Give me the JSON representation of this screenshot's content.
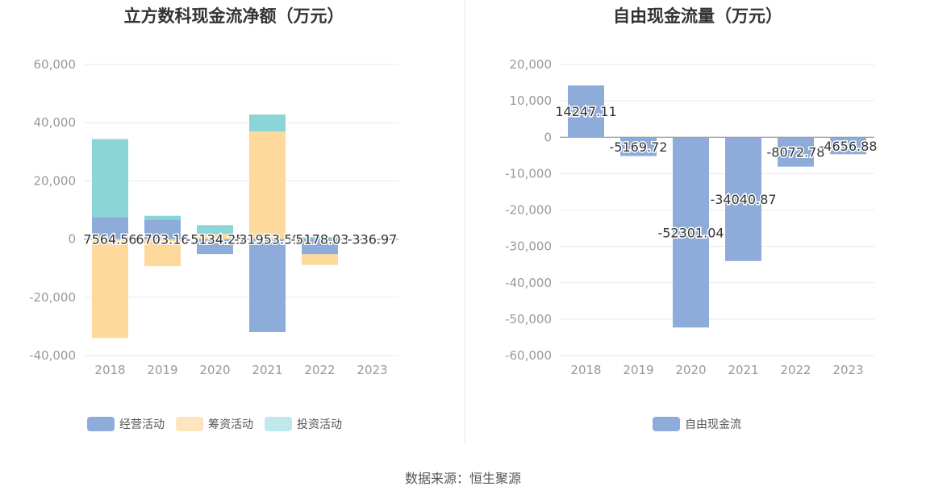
{
  "chart_data": [
    {
      "type": "bar",
      "stacked": true,
      "title": "立方数科现金流净额（万元）",
      "categories": [
        "2018",
        "2019",
        "2020",
        "2021",
        "2022",
        "2023"
      ],
      "ylim": [
        -40000,
        60000
      ],
      "yticks": [
        60000,
        40000,
        20000,
        0,
        -20000,
        -40000
      ],
      "ytick_labels": [
        "60,000",
        "40,000",
        "20,000",
        "0",
        "-20,000",
        "-40,000"
      ],
      "grid": true,
      "legend_position": "bottom",
      "series": [
        {
          "name": "经营活动",
          "color": "#8eacda",
          "values": [
            7564.56,
            6703.16,
            -5134.25,
            -31953.59,
            -5178.03,
            -336.97
          ],
          "labels": [
            "7564.56",
            "6703.16",
            "-5134.25",
            "-31953.59",
            "-5178.03",
            "-336.97"
          ]
        },
        {
          "name": "筹资活动",
          "color": "#fdd99b",
          "values": [
            -34000,
            -9300,
            1800,
            37000,
            -3700,
            0
          ]
        },
        {
          "name": "投资活动",
          "color": "#8ad5d8",
          "values": [
            26800,
            1300,
            3000,
            5800,
            700,
            0
          ]
        }
      ]
    },
    {
      "type": "bar",
      "title": "自由现金流量（万元）",
      "categories": [
        "2018",
        "2019",
        "2020",
        "2021",
        "2022",
        "2023"
      ],
      "ylim": [
        -60000,
        20000
      ],
      "yticks": [
        20000,
        10000,
        0,
        -10000,
        -20000,
        -30000,
        -40000,
        -50000,
        -60000
      ],
      "ytick_labels": [
        "20,000",
        "10,000",
        "0",
        "-10,000",
        "-20,000",
        "-30,000",
        "-40,000",
        "-50,000",
        "-60,000"
      ],
      "grid": true,
      "legend_position": "bottom",
      "series": [
        {
          "name": "自由现金流",
          "color": "#8eacda",
          "values": [
            14247.11,
            -5169.72,
            -52301.04,
            -34040.87,
            -8072.78,
            -4656.88
          ],
          "labels": [
            "14247.11",
            "-5169.72",
            "-52301.04",
            "-34040.87",
            "-8072.78",
            "-4656.88"
          ]
        }
      ]
    }
  ],
  "source_text": "数据来源：恒生聚源"
}
